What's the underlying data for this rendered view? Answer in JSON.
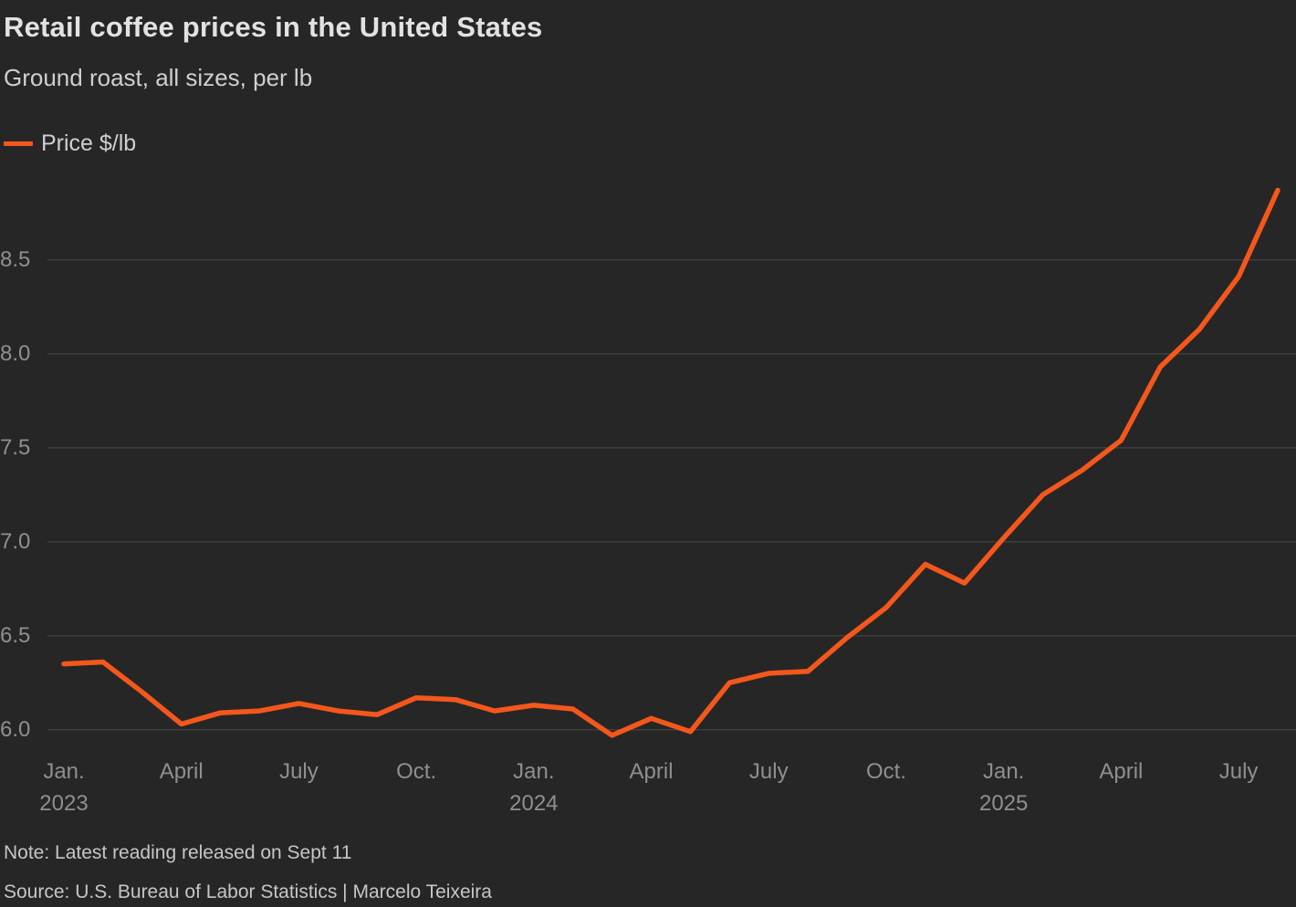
{
  "header": {
    "title": "Retail coffee prices in the United States",
    "subtitle": "Ground roast, all sizes, per lb"
  },
  "legend": {
    "label": "Price $/lb"
  },
  "footer": {
    "note": "Note: Latest reading released on Sept 11",
    "source": "Source: U.S. Bureau of Labor Statistics | Marcelo Teixeira"
  },
  "colors": {
    "background": "#262626",
    "line": "#f4571c",
    "grid": "#3e3e3e",
    "axis_text": "#8f8f8f",
    "title_text": "#e2e2e2",
    "subtitle_text": "#cfcfcf",
    "note_text": "#c6c6c6"
  },
  "chart_data": {
    "type": "line",
    "title": "Retail coffee prices in the United States",
    "subtitle": "Ground roast, all sizes, per lb",
    "xlabel": "",
    "ylabel": "Price $/lb",
    "grid": "horizontal",
    "legend_position": "top-left",
    "ylim": [
      5.95,
      8.95
    ],
    "y_ticks": [
      6.0,
      6.5,
      7.0,
      7.5,
      8.0,
      8.5
    ],
    "x": [
      "2023-01",
      "2023-02",
      "2023-03",
      "2023-04",
      "2023-05",
      "2023-06",
      "2023-07",
      "2023-08",
      "2023-09",
      "2023-10",
      "2023-11",
      "2023-12",
      "2024-01",
      "2024-02",
      "2024-03",
      "2024-04",
      "2024-05",
      "2024-06",
      "2024-07",
      "2024-08",
      "2024-09",
      "2024-10",
      "2024-11",
      "2024-12",
      "2025-01",
      "2025-02",
      "2025-03",
      "2025-04",
      "2025-05",
      "2025-06",
      "2025-07",
      "2025-08"
    ],
    "x_ticks": [
      {
        "index": 0,
        "label": "Jan.",
        "year": "2023"
      },
      {
        "index": 3,
        "label": "April",
        "year": ""
      },
      {
        "index": 6,
        "label": "July",
        "year": ""
      },
      {
        "index": 9,
        "label": "Oct.",
        "year": ""
      },
      {
        "index": 12,
        "label": "Jan.",
        "year": "2024"
      },
      {
        "index": 15,
        "label": "April",
        "year": ""
      },
      {
        "index": 18,
        "label": "July",
        "year": ""
      },
      {
        "index": 21,
        "label": "Oct.",
        "year": ""
      },
      {
        "index": 24,
        "label": "Jan.",
        "year": "2025"
      },
      {
        "index": 27,
        "label": "April",
        "year": ""
      },
      {
        "index": 30,
        "label": "July",
        "year": ""
      }
    ],
    "series": [
      {
        "name": "Price $/lb",
        "values": [
          6.35,
          6.36,
          6.2,
          6.03,
          6.09,
          6.1,
          6.14,
          6.1,
          6.08,
          6.17,
          6.16,
          6.1,
          6.13,
          6.11,
          5.97,
          6.06,
          5.99,
          6.25,
          6.3,
          6.31,
          6.49,
          6.65,
          6.88,
          6.78,
          7.02,
          7.25,
          7.38,
          7.54,
          7.93,
          8.13,
          8.41,
          8.87
        ]
      }
    ]
  }
}
